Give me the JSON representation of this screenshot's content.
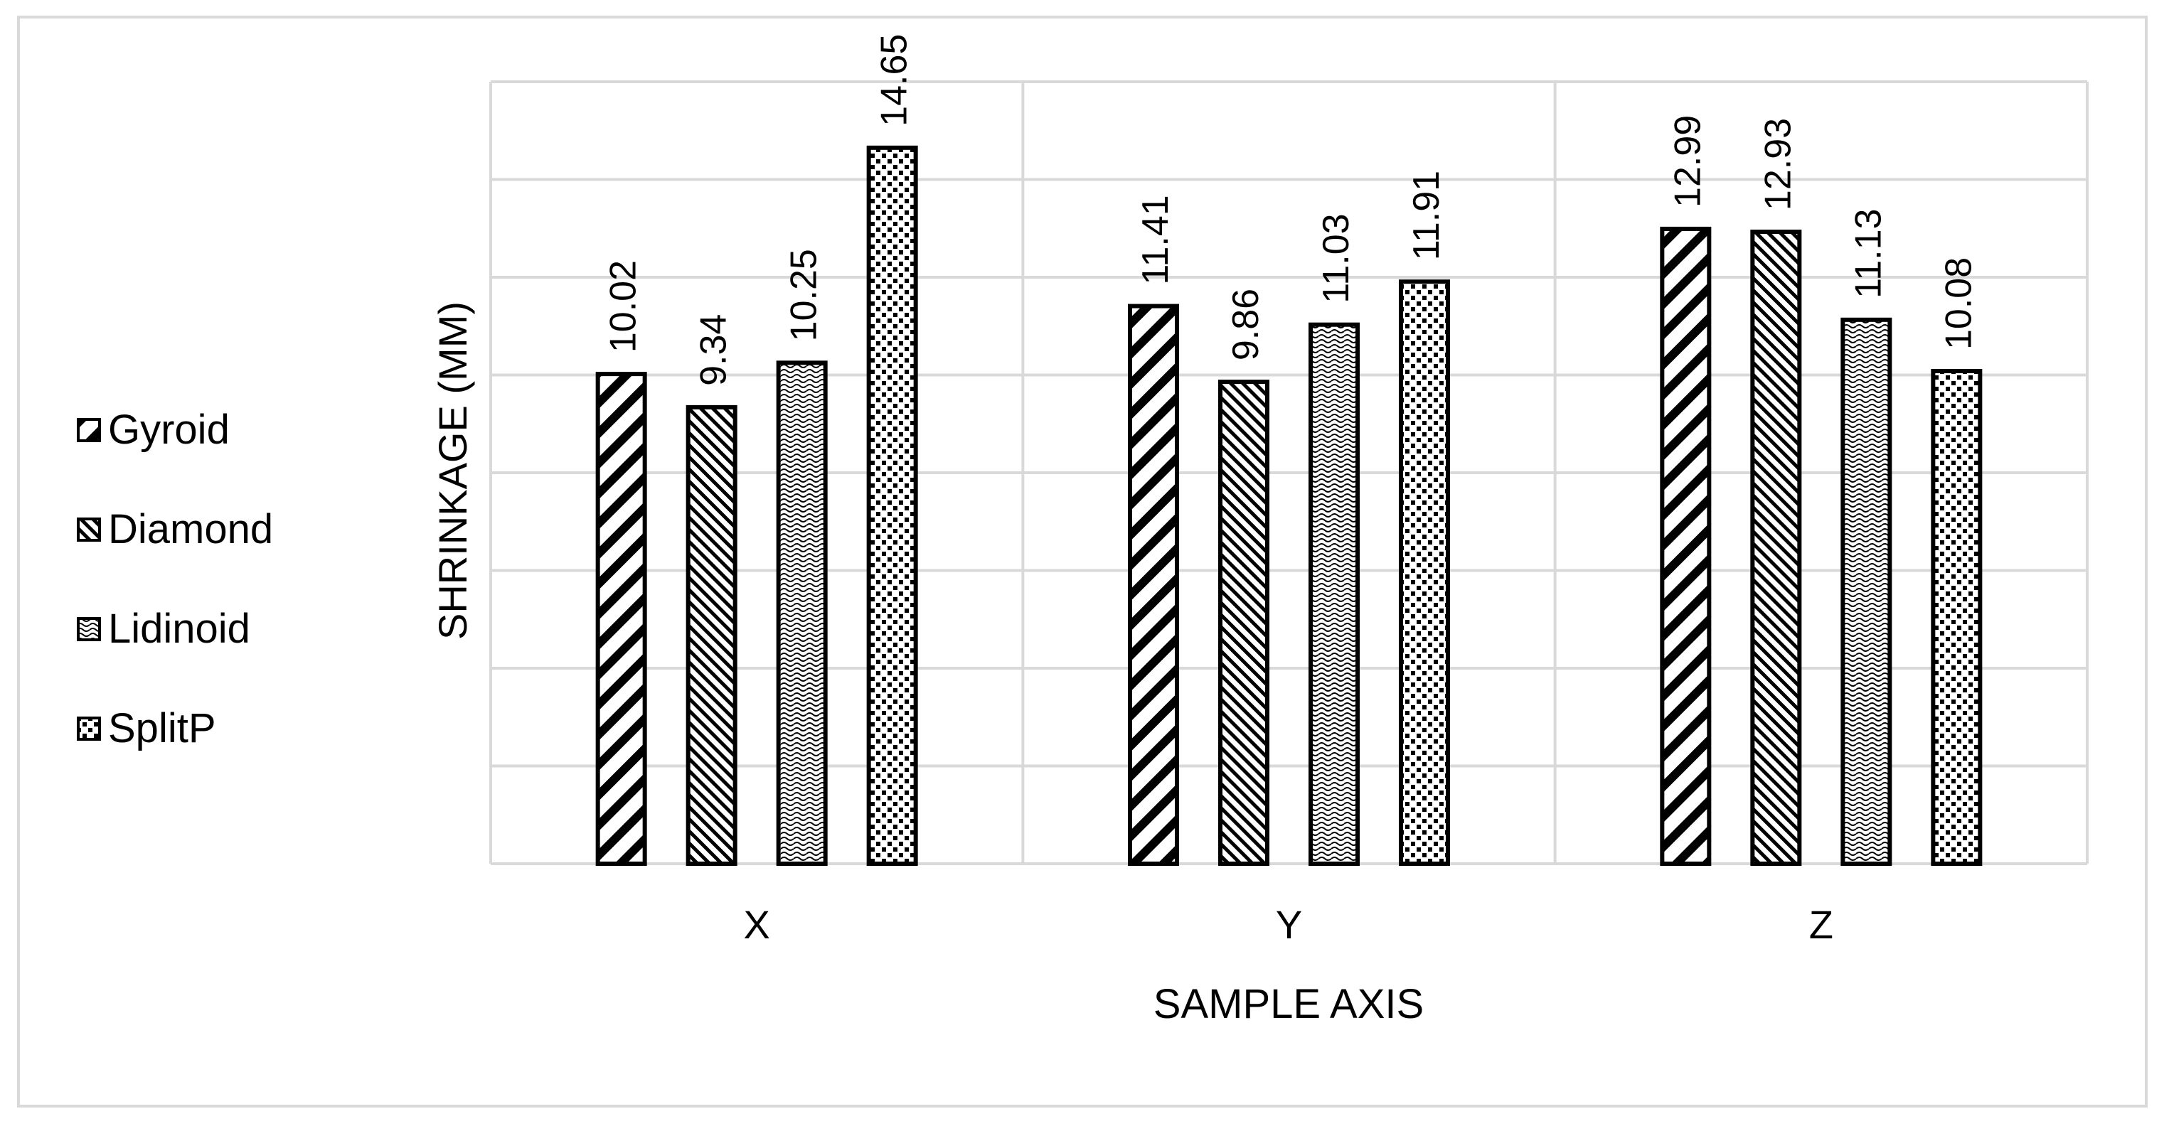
{
  "chart_data": {
    "type": "bar",
    "title": "",
    "xlabel": "SAMPLE AXIS",
    "ylabel": "SHRINKAGE (MM)",
    "categories": [
      "X",
      "Y",
      "Z"
    ],
    "series": [
      {
        "name": "Gyroid",
        "values": [
          10.02,
          11.41,
          12.99
        ]
      },
      {
        "name": "Diamond",
        "values": [
          9.34,
          9.86,
          12.93
        ]
      },
      {
        "name": "Lidinoid",
        "values": [
          10.25,
          11.03,
          11.13
        ]
      },
      {
        "name": "SplitP",
        "values": [
          14.65,
          11.91,
          10.08
        ]
      }
    ],
    "ylim": [
      0,
      16
    ],
    "y_gridline_step": 2,
    "grid": true,
    "y_tick_labels_shown": false,
    "legend_placement": "left",
    "data_labels": true,
    "colors": {
      "bar_stroke": "#000000",
      "bar_fill": "#ffffff",
      "grid": "#d9d9d9",
      "frame": "#d9d9d9"
    }
  }
}
